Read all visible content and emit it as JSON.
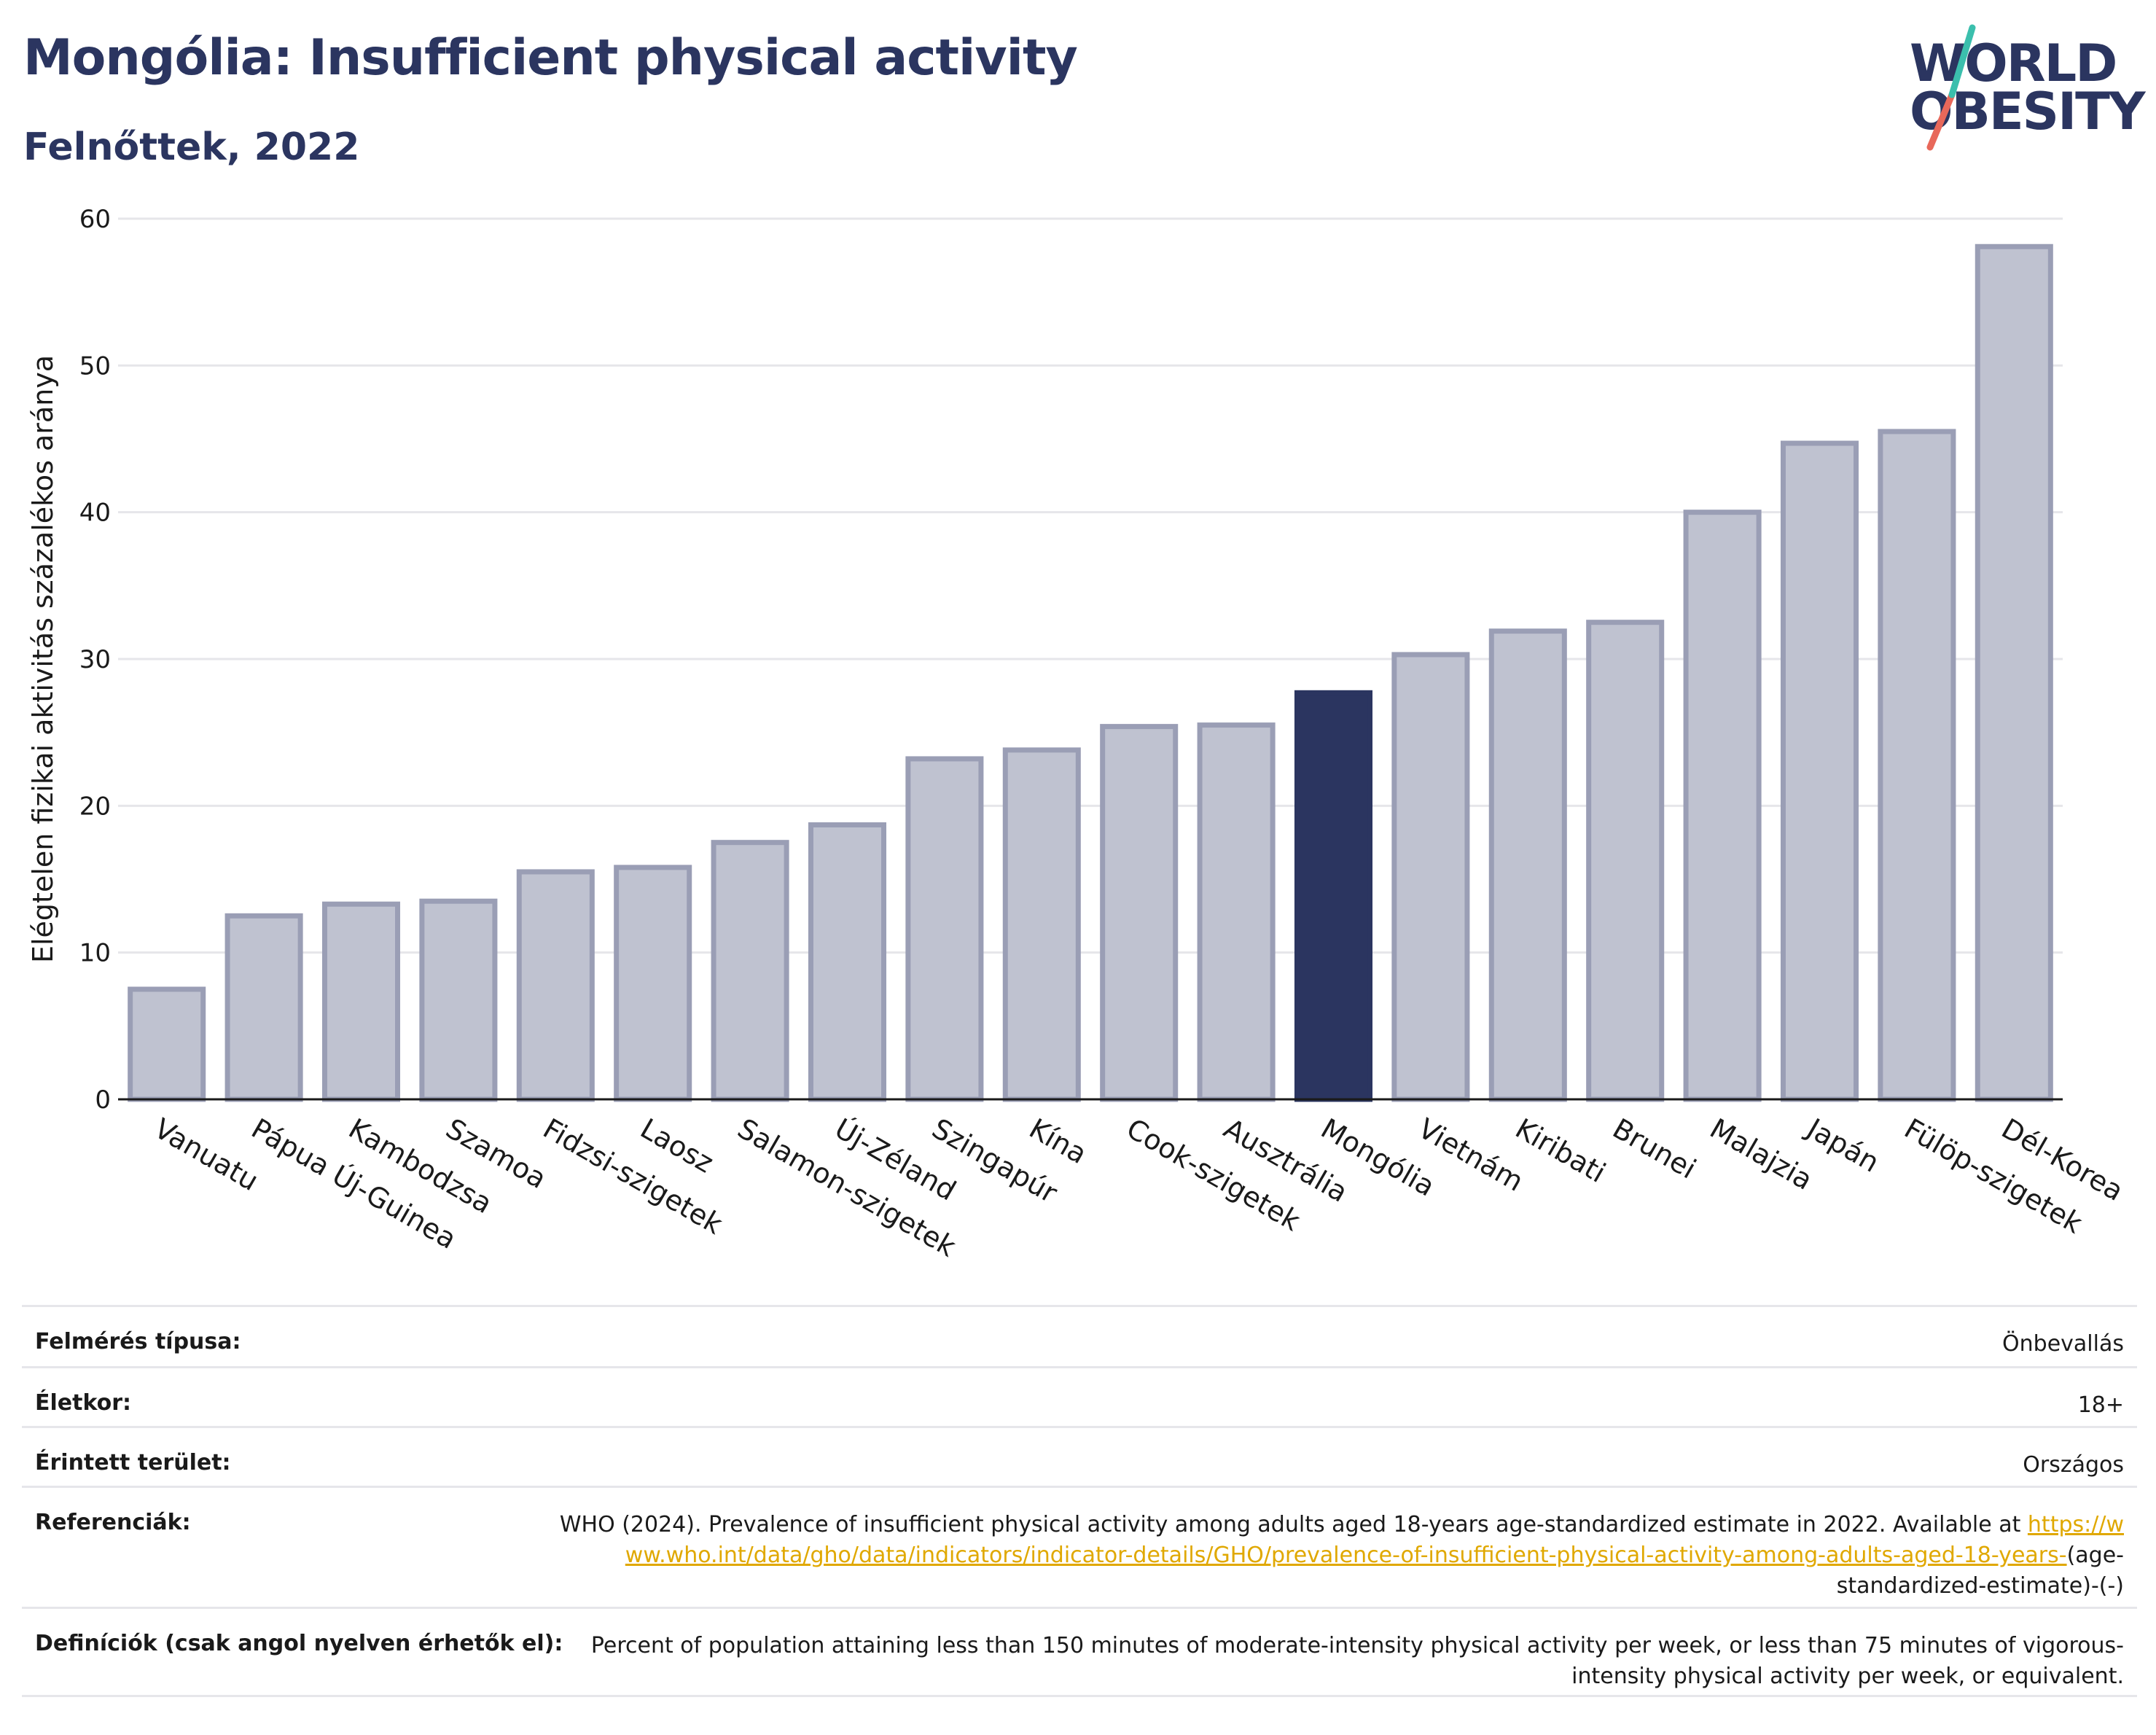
{
  "header": {
    "title": "Mongólia: Insufficient physical activity",
    "subtitle": "Felnőttek, 2022",
    "logo_line1": "WORLD",
    "logo_line2": "OBESITY"
  },
  "colors": {
    "title": "#2b3560",
    "bar": "#bfc2d0",
    "bar_border": "#9a9eb5",
    "highlight": "#2b3560",
    "link": "#e0a800",
    "logo_teal": "#3bbfad",
    "logo_red": "#e8685a"
  },
  "chart_data": {
    "type": "bar",
    "ylabel": "Elégtelen fizikai aktivitás százalékos aránya",
    "ylim": [
      0,
      60
    ],
    "yticks": [
      "0",
      "10",
      "20",
      "30",
      "40",
      "50",
      "60"
    ],
    "highlight": "Mongólia",
    "grid": true,
    "categories": [
      "Vanuatu",
      "Pápua Új-Guinea",
      "Kambodzsa",
      "Szamoa",
      "Fidzsi-szigetek",
      "Laosz",
      "Salamon-szigetek",
      "Új-Zéland",
      "Szingapúr",
      "Kína",
      "Cook-szigetek",
      "Ausztrália",
      "Mongólia",
      "Vietnám",
      "Kiribati",
      "Brunei",
      "Malajzia",
      "Japán",
      "Fülöp-szigetek",
      "Dél-Korea"
    ],
    "values": [
      7.5,
      12.5,
      13.3,
      13.5,
      15.5,
      15.8,
      17.5,
      18.7,
      23.2,
      23.8,
      25.4,
      25.5,
      27.7,
      30.3,
      31.9,
      32.5,
      40.0,
      44.7,
      45.5,
      58.1
    ]
  },
  "info": {
    "rows": [
      {
        "label": "Felmérés típusa:",
        "value": "Önbevallás"
      },
      {
        "label": "Életkor:",
        "value": "18+"
      },
      {
        "label": "Érintett terület:",
        "value": "Országos"
      }
    ],
    "ref_label": "Referenciák:",
    "ref_text": "WHO (2024). Prevalence of insufficient physical activity among adults aged 18-years age-standardized estimate in 2022. Available at",
    "ref_link": "https://www.who.int/data/gho/data/indicators/indicator-details/GHO/prevalence-of-insufficient-physical-activity-among-adults-aged-18-years-",
    "ref_tail": "(age-standardized-estimate)-(-)",
    "def_label": "Definíciók (csak angol nyelven érhetők el):",
    "def_text": "Percent of population attaining less than 150 minutes of moderate-intensity physical activity per week, or less than 75 minutes of vigorous-intensity physical activity per week, or equivalent."
  }
}
